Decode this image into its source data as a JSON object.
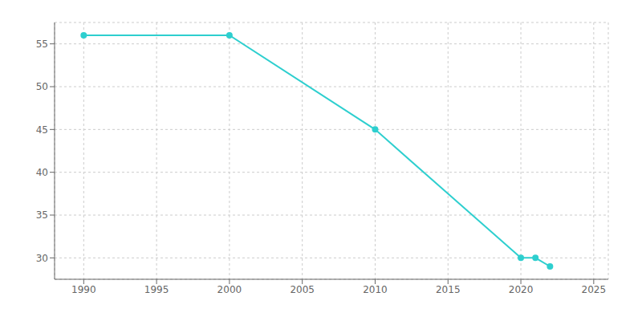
{
  "chart_data": {
    "type": "line",
    "x": [
      1990,
      2000,
      2010,
      2020,
      2021,
      2022
    ],
    "values": [
      56,
      56,
      45,
      30,
      30,
      29
    ],
    "color": "#2ecfcf",
    "marker": "o",
    "xlim": [
      1988,
      2026
    ],
    "ylim": [
      27.5,
      57.5
    ],
    "xticks": [
      1990,
      1995,
      2000,
      2005,
      2010,
      2015,
      2020,
      2025
    ],
    "yticks": [
      30,
      35,
      40,
      45,
      50,
      55
    ],
    "grid": true
  }
}
